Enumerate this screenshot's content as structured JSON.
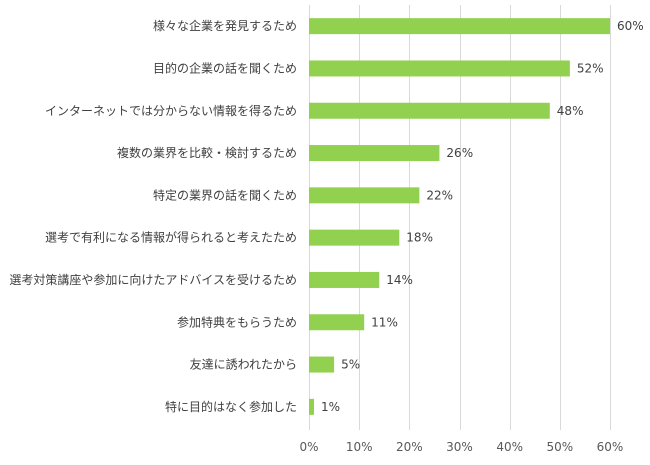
{
  "chart_data": {
    "type": "bar",
    "orientation": "horizontal",
    "categories": [
      "様々な企業を発見するため",
      "目的の企業の話を聞くため",
      "インターネットでは分からない情報を得るため",
      "複数の業界を比較・検討するため",
      "特定の業界の話を聞くため",
      "選考で有利になる情報が得られると考えたため",
      "選考対策講座や参加に向けたアドバイスを受けるため",
      "参加特典をもらうため",
      "友達に誘われたから",
      "特に目的はなく参加した"
    ],
    "values": [
      60,
      52,
      48,
      26,
      22,
      18,
      14,
      11,
      5,
      1
    ],
    "value_labels": [
      "60%",
      "52%",
      "48%",
      "26%",
      "22%",
      "18%",
      "14%",
      "11%",
      "5%",
      "1%"
    ],
    "xlim": [
      0,
      60
    ],
    "x_ticks": [
      0,
      10,
      20,
      30,
      40,
      50,
      60
    ],
    "x_tick_labels": [
      "0%",
      "10%",
      "20%",
      "30%",
      "40%",
      "50%",
      "60%"
    ],
    "grid": true,
    "legend": "none",
    "bar_color": "#92d050",
    "grid_color": "#d9d9d9",
    "text_color": "#404040"
  }
}
